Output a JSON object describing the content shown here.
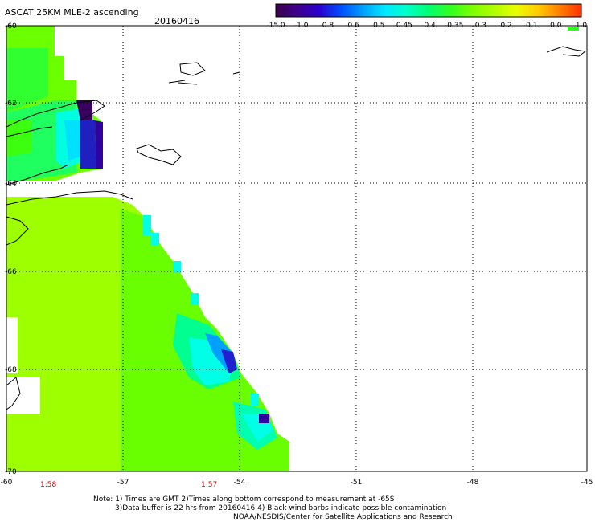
{
  "header": {
    "title": "ASCAT 25KM MLE-2 ascending",
    "date": "20160416"
  },
  "colorbar": {
    "stops": [
      "#3a0046",
      "#3f0090",
      "#2a00d0",
      "#0050ff",
      "#00a0ff",
      "#00e8ff",
      "#00ffc8",
      "#00ff70",
      "#30ff20",
      "#7cff00",
      "#b0ff00",
      "#e8ff00",
      "#ffcc00",
      "#ff8000",
      "#ff3000"
    ],
    "labels": [
      "-15.0",
      "-1.0",
      "-0.8",
      "-0.6",
      "-0.5",
      "-0.45",
      "-0.4",
      "-0.35",
      "-0.3",
      "-0.2",
      "-0.1",
      "0.0",
      "1.0"
    ]
  },
  "axes": {
    "x_ticks": [
      "-60",
      "-57",
      "-54",
      "-51",
      "-48",
      "-45"
    ],
    "y_ticks": [
      "-60",
      "-62",
      "-64",
      "-66",
      "-68",
      "-70"
    ],
    "time_labels": [
      "1:58",
      "1:57"
    ]
  },
  "footer": {
    "note_line1": "Note: 1) Times are GMT 2)Times along bottom correspond to measurement at -65S",
    "note_line2": "3)Data buffer is 22 hrs from 20160416 4) Black wind barbs indicate possible contamination",
    "credit": "NOAA/NESDIS/Center for Satellite Applications and Research"
  },
  "colors": {
    "green": "#6cff00",
    "lime": "#a6ff00",
    "bright_green": "#00ff40",
    "cyan": "#00ffe6",
    "blue": "#0050ff",
    "purple": "#3c00a0"
  }
}
